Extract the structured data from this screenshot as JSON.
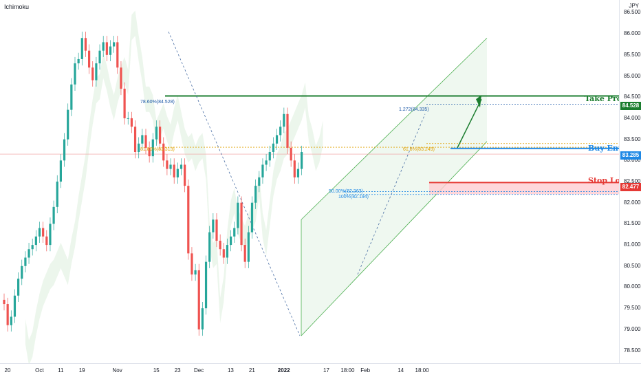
{
  "chart_header": {
    "indicator": "Ichimoku",
    "symbol": "JPY"
  },
  "chart_data": {
    "type": "candlestick",
    "y_range": [
      78.2,
      86.8
    ],
    "y_ticks": [
      "86.500",
      "86.000",
      "85.500",
      "85.000",
      "84.500",
      "84.000",
      "83.500",
      "83.000",
      "82.500",
      "82.000",
      "81.500",
      "81.000",
      "80.500",
      "80.000",
      "79.500",
      "79.000",
      "78.500"
    ],
    "y_tick_values": [
      86.5,
      86.0,
      85.5,
      85.0,
      84.5,
      84.0,
      83.5,
      83.0,
      82.5,
      82.0,
      81.5,
      81.0,
      80.5,
      80.0,
      79.5,
      79.0,
      78.5
    ],
    "x_ticks": [
      {
        "label": "20",
        "bar": 0
      },
      {
        "label": "Oct",
        "bar": 9
      },
      {
        "label": "11",
        "bar": 15
      },
      {
        "label": "19",
        "bar": 21
      },
      {
        "label": "Nov",
        "bar": 31
      },
      {
        "label": "15",
        "bar": 42
      },
      {
        "label": "23",
        "bar": 48
      },
      {
        "label": "Dec",
        "bar": 54
      },
      {
        "label": "13",
        "bar": 63
      },
      {
        "label": "21",
        "bar": 69
      },
      {
        "label": "2022",
        "bar": 78,
        "bold": true
      },
      {
        "label": "17",
        "bar": 90
      },
      {
        "label": "18:00",
        "bar": 96
      },
      {
        "label": "Feb",
        "bar": 101
      },
      {
        "label": "14",
        "bar": 111
      },
      {
        "label": "18:00",
        "bar": 117
      }
    ],
    "closes": [
      79.6,
      79.1,
      79.3,
      79.8,
      80.2,
      80.5,
      80.7,
      80.9,
      81.0,
      81.2,
      81.4,
      81.2,
      81.0,
      81.5,
      81.9,
      82.5,
      83.0,
      83.5,
      84.2,
      84.8,
      85.3,
      85.4,
      85.9,
      85.6,
      85.2,
      84.9,
      85.3,
      85.6,
      85.8,
      85.5,
      85.7,
      85.8,
      85.2,
      84.7,
      84.0,
      84.0,
      83.8,
      83.2,
      83.4,
      83.6,
      83.3,
      83.1,
      83.5,
      83.8,
      83.4,
      83.0,
      82.8,
      82.9,
      82.6,
      82.8,
      82.9,
      82.4,
      80.8,
      80.3,
      80.4,
      79.0,
      79.5,
      80.6,
      81.3,
      81.6,
      81.1,
      80.9,
      80.7,
      81.0,
      81.2,
      81.4,
      82.0,
      81.0,
      80.6,
      81.3,
      82.0,
      82.4,
      82.6,
      82.9,
      83.0,
      83.2,
      83.4,
      83.6,
      83.8,
      84.1,
      83.3,
      83.0,
      82.6,
      82.8,
      83.2
    ],
    "ichimoku_cloud": "green and red shaded cloud",
    "levels": [
      {
        "name": "Take Profit",
        "price": 84.528,
        "color": "#1b7d2f"
      },
      {
        "name": "Buy Entry",
        "price": 83.285,
        "color": "#1e88e5"
      },
      {
        "name": "Stop Loss",
        "price": 82.477,
        "color": "#e53935"
      }
    ],
    "annotations": {
      "fib1": "78.60%(84.528)",
      "fib2": "81.80%(83.313)",
      "fib3": "1.272(84.335)",
      "fib4": "50.00%(82.263)",
      "fib5": "100%(82.194)",
      "fib6": "61.8%(83.249)"
    }
  },
  "badges": {
    "take_profit": "84.528",
    "buy_entry": "83.285",
    "stop_loss": "82.477"
  },
  "labels": {
    "take_profit": "Take Profit",
    "buy_entry": "Buy Entry",
    "stop_loss": "Stop Loss"
  },
  "colors": {
    "up": "#26a69a",
    "down": "#ef5350",
    "tp": "#1b7d2f",
    "entry": "#1e88e5",
    "sl": "#e53935"
  }
}
